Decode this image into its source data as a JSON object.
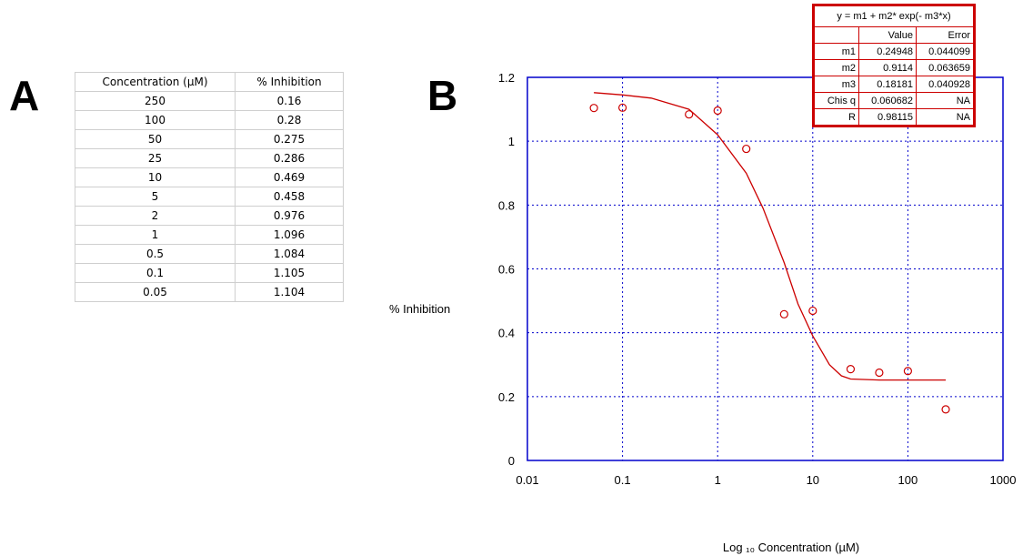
{
  "panel_labels": {
    "a": "A",
    "b": "B"
  },
  "table": {
    "headers": [
      "Concentration (µM)",
      "% Inhibition"
    ],
    "rows": [
      [
        "250",
        "0.16"
      ],
      [
        "100",
        "0.28"
      ],
      [
        "50",
        "0.275"
      ],
      [
        "25",
        "0.286"
      ],
      [
        "10",
        "0.469"
      ],
      [
        "5",
        "0.458"
      ],
      [
        "2",
        "0.976"
      ],
      [
        "1",
        "1.096"
      ],
      [
        "0.5",
        "1.084"
      ],
      [
        "0.1",
        "1.105"
      ],
      [
        "0.05",
        "1.104"
      ]
    ]
  },
  "fit_box": {
    "equation": "y = m1 + m2* exp(- m3*x)",
    "headers": [
      "",
      "Value",
      "Error"
    ],
    "rows": [
      [
        "m1",
        "0.24948",
        "0.044099"
      ],
      [
        "m2",
        "0.9114",
        "0.063659"
      ],
      [
        "m3",
        "0.18181",
        "0.040928"
      ],
      [
        "Chis q",
        "0.060682",
        "NA"
      ],
      [
        "R",
        "0.98115",
        "NA"
      ]
    ]
  },
  "chart_data": {
    "type": "scatter",
    "xscale": "log",
    "xlim": [
      0.01,
      1000
    ],
    "ylim": [
      0,
      1.2
    ],
    "xticks": [
      "0.01",
      "0.1",
      "1",
      "10",
      "100",
      "1000"
    ],
    "yticks": [
      "0",
      "0.2",
      "0.4",
      "0.6",
      "0.8",
      "1",
      "1.2"
    ],
    "ylabel": "% Inhibition",
    "xlabel": "Log ₁₀ Concentration (µM)",
    "grid": true,
    "colors": {
      "axes": "#0000cc",
      "grid": "#0000cc",
      "series": "#cc0000"
    },
    "points": {
      "x": [
        250,
        100,
        50,
        25,
        10,
        5,
        2,
        1,
        0.5,
        0.1,
        0.05
      ],
      "y": [
        0.16,
        0.28,
        0.275,
        0.286,
        0.469,
        0.458,
        0.976,
        1.096,
        1.084,
        1.105,
        1.104
      ]
    },
    "fit_curve": {
      "x": [
        0.05,
        0.1,
        0.2,
        0.5,
        1,
        2,
        3,
        5,
        7,
        10,
        15,
        20,
        25,
        50,
        100,
        250
      ],
      "y": [
        1.152,
        1.145,
        1.135,
        1.1,
        1.02,
        0.9,
        0.79,
        0.62,
        0.49,
        0.39,
        0.3,
        0.265,
        0.255,
        0.252,
        0.252,
        0.252
      ]
    }
  }
}
